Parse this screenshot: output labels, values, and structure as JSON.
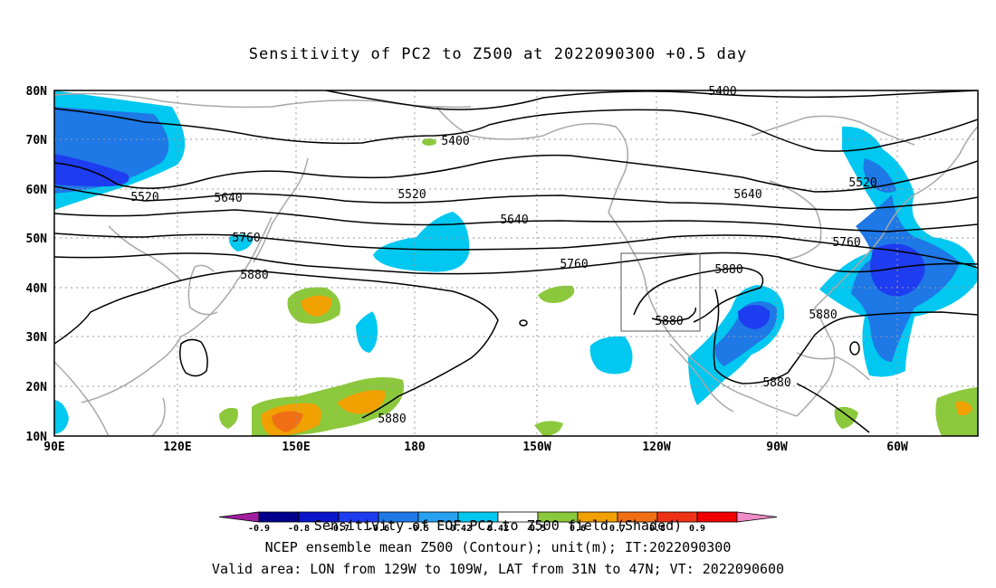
{
  "title": "Sensitivity of PC2 to Z500 at 2022090300 +0.5 day",
  "map": {
    "lon_range": [
      "90E",
      "310E"
    ],
    "lat_range": [
      10,
      80
    ],
    "x_ticks": [
      {
        "lon": 90,
        "label": "90E"
      },
      {
        "lon": 120,
        "label": "120E"
      },
      {
        "lon": 150,
        "label": "150E"
      },
      {
        "lon": 180,
        "label": "180"
      },
      {
        "lon": 210,
        "label": "150W"
      },
      {
        "lon": 240,
        "label": "120W"
      },
      {
        "lon": 270,
        "label": "90W"
      },
      {
        "lon": 300,
        "label": "60W"
      }
    ],
    "y_ticks": [
      {
        "lat": 10,
        "label": "10N"
      },
      {
        "lat": 20,
        "label": "20N"
      },
      {
        "lat": 30,
        "label": "30N"
      },
      {
        "lat": 40,
        "label": "40N"
      },
      {
        "lat": 50,
        "label": "50N"
      },
      {
        "lat": 60,
        "label": "60N"
      },
      {
        "lat": 70,
        "label": "70N"
      },
      {
        "lat": 80,
        "label": "80N"
      }
    ],
    "gridlines": "dotted",
    "contour_labels": [
      {
        "text": "5400",
        "lon": 246,
        "lat": 79.8
      },
      {
        "text": "5400",
        "lon": 189,
        "lat": 69.3
      },
      {
        "text": "5520",
        "lon": 114,
        "lat": 58.5
      },
      {
        "text": "5520",
        "lon": 178,
        "lat": 59.2
      },
      {
        "text": "5520",
        "lon": 295,
        "lat": 61.0
      },
      {
        "text": "5640",
        "lon": 131,
        "lat": 58.3
      },
      {
        "text": "5640",
        "lon": 197,
        "lat": 52.8
      },
      {
        "text": "5640",
        "lon": 259,
        "lat": 59.3
      },
      {
        "text": "5760",
        "lon": 135,
        "lat": 50.6
      },
      {
        "text": "5760",
        "lon": 214,
        "lat": 44.2
      },
      {
        "text": "5760",
        "lon": 291,
        "lat": 49.4
      },
      {
        "text": "5880",
        "lon": 136,
        "lat": 42.5
      },
      {
        "text": "5880",
        "lon": 253,
        "lat": 43.3
      },
      {
        "text": "5880",
        "lon": 242,
        "lat": 33.0
      },
      {
        "text": "5880",
        "lon": 281,
        "lat": 34.2
      },
      {
        "text": "5880",
        "lon": 177,
        "lat": 13.7
      },
      {
        "text": "5880",
        "lon": 268,
        "lat": 20.8
      }
    ],
    "valid_box": {
      "lon_w": 231,
      "lon_e": 251,
      "lat_s": 31,
      "lat_n": 47
    }
  },
  "colorbar": {
    "labels": [
      "-0.9",
      "-0.8",
      "-0.7",
      "-0.6",
      "-0.5",
      "-0.42",
      "0.42",
      "0.5",
      "0.6",
      "0.7",
      "0.8",
      "0.9"
    ],
    "colors": [
      "#a01ea0",
      "#00008c",
      "#0a14c8",
      "#1e3cf0",
      "#1e78e6",
      "#28a0f0",
      "#00c8f0",
      "#ffffff",
      "#8cc83c",
      "#f0a000",
      "#f06e14",
      "#f03214",
      "#f00000",
      "#f08cc8"
    ]
  },
  "footer": {
    "line1": "Sensitivity of EOF PC2 to Z500 field (Shaded)",
    "line2": "NCEP ensemble mean Z500 (Contour); unit(m); IT:2022090300",
    "line3": "Valid area: LON from 129W to 109W, LAT from 31N to 47N; VT: 2022090600"
  }
}
